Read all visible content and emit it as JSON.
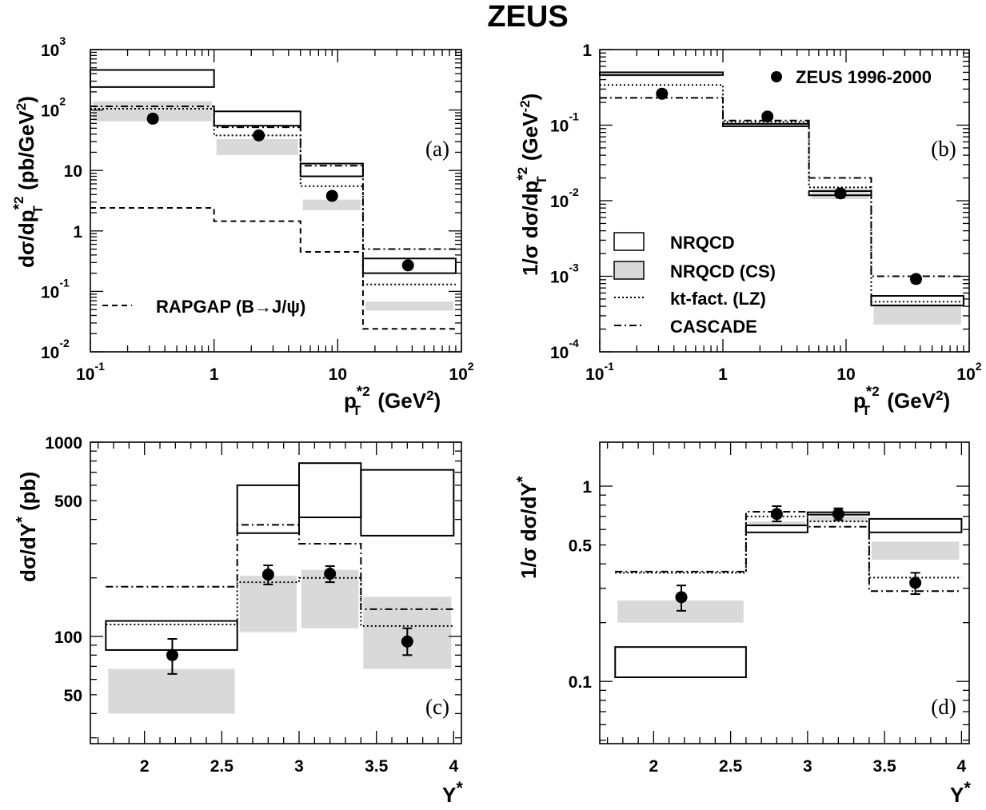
{
  "title": "ZEUS",
  "legend": {
    "data": "ZEUS 1996-2000",
    "nrqcd": "NRQCD",
    "nrqcd_cs": "NRQCD (CS)",
    "ktfact": "kt-fact. (LZ)",
    "cascade": "CASCADE",
    "rapgap": "RAPGAP (B→J/ψ)"
  },
  "chart_data": [
    {
      "type": "line",
      "panel_label": "(a)",
      "x_scale": "log",
      "y_scale": "log",
      "xlim": [
        0.1,
        100
      ],
      "ylim": [
        0.01,
        1000
      ],
      "xlabel": "p*²T (GeV²)",
      "ylabel": "dσ/dp*²T (pb/GeV²)",
      "x_ticks": [
        "10⁻¹",
        "1",
        "10",
        "10²"
      ],
      "y_ticks": [
        "10⁻²",
        "10⁻¹",
        "1",
        "10",
        "10²",
        "10³"
      ],
      "bins": [
        [
          0.1,
          1
        ],
        [
          1,
          5
        ],
        [
          5,
          16
        ],
        [
          16,
          90
        ]
      ],
      "data": [
        {
          "x": 0.32,
          "y": 72,
          "err": [
            63,
            82
          ]
        },
        {
          "x": 2.3,
          "y": 38,
          "err": [
            35,
            41
          ]
        },
        {
          "x": 9,
          "y": 3.8,
          "err": [
            3.5,
            4.2
          ]
        },
        {
          "x": 37,
          "y": 0.27,
          "err": [
            0.24,
            0.3
          ]
        }
      ],
      "nrqcd": [
        [
          240,
          460
        ],
        [
          55,
          95
        ],
        [
          8,
          13
        ],
        [
          0.2,
          0.35
        ]
      ],
      "nrqcd_cs": [
        [
          65,
          140
        ],
        [
          18,
          33
        ],
        [
          2.2,
          3.3
        ],
        [
          0.048,
          0.068
        ]
      ],
      "ktfact": [
        105,
        38,
        5.5,
        0.13
      ],
      "cascade": [
        115,
        52,
        12,
        0.5
      ],
      "rapgap": [
        2.4,
        1.45,
        0.45,
        0.024
      ]
    },
    {
      "type": "line",
      "panel_label": "(b)",
      "x_scale": "log",
      "y_scale": "log",
      "xlim": [
        0.1,
        100
      ],
      "ylim": [
        0.0001,
        1
      ],
      "xlabel": "p*²T (GeV²)",
      "ylabel": "1/σ dσ/dp*²T (GeV⁻²)",
      "x_ticks": [
        "10⁻¹",
        "1",
        "10",
        "10²"
      ],
      "y_ticks": [
        "10⁻⁴",
        "10⁻³",
        "10⁻²",
        "10⁻¹",
        "1"
      ],
      "bins": [
        [
          0.1,
          1
        ],
        [
          1,
          5
        ],
        [
          5,
          16
        ],
        [
          16,
          90
        ]
      ],
      "data": [
        {
          "x": 0.32,
          "y": 0.26,
          "err": [
            0.24,
            0.29
          ]
        },
        {
          "x": 2.3,
          "y": 0.13,
          "err": [
            0.12,
            0.14
          ]
        },
        {
          "x": 9,
          "y": 0.0125,
          "err": [
            0.011,
            0.014
          ]
        },
        {
          "x": 37,
          "y": 0.00092,
          "err": [
            0.00082,
            0.001
          ]
        }
      ],
      "nrqcd": [
        [
          0.46,
          0.5
        ],
        [
          0.1,
          0.104
        ],
        [
          0.0118,
          0.0134
        ],
        [
          0.00041,
          0.00055
        ]
      ],
      "nrqcd_cs": [
        [
          0.44,
          0.48
        ],
        [
          0.098,
          0.106
        ],
        [
          0.0105,
          0.0145
        ],
        [
          0.00023,
          0.00043
        ]
      ],
      "ktfact": [
        0.34,
        0.11,
        0.015,
        0.00046
      ],
      "cascade": [
        0.23,
        0.115,
        0.02,
        0.001
      ]
    },
    {
      "type": "line",
      "panel_label": "(c)",
      "x_scale": "linear",
      "y_scale": "log",
      "xlim": [
        1.65,
        4.05
      ],
      "ylim": [
        28,
        1000
      ],
      "xlabel": "Y*",
      "ylabel": "dσ/dY* (pb)",
      "x_ticks": [
        "2",
        "2.5",
        "3",
        "3.5",
        "4"
      ],
      "y_ticks": [
        "50",
        "100",
        "500",
        "1000"
      ],
      "bins": [
        [
          1.75,
          2.6
        ],
        [
          2.6,
          3.0
        ],
        [
          3.0,
          3.4
        ],
        [
          3.4,
          4.0
        ]
      ],
      "data": [
        {
          "x": 2.18,
          "y": 80,
          "err": [
            64,
            97
          ]
        },
        {
          "x": 2.8,
          "y": 208,
          "err": [
            185,
            232
          ]
        },
        {
          "x": 3.2,
          "y": 210,
          "err": [
            190,
            230
          ]
        },
        {
          "x": 3.7,
          "y": 94,
          "err": [
            80,
            110
          ]
        }
      ],
      "nrqcd": [
        [
          85,
          120
        ],
        [
          340,
          600
        ],
        [
          410,
          780
        ],
        [
          330,
          720
        ]
      ],
      "nrqcd_cs": [
        [
          40,
          68
        ],
        [
          105,
          205
        ],
        [
          110,
          220
        ],
        [
          68,
          160
        ]
      ],
      "ktfact": [
        115,
        190,
        200,
        113
      ],
      "cascade": [
        180,
        375,
        300,
        138
      ]
    },
    {
      "type": "line",
      "panel_label": "(d)",
      "x_scale": "linear",
      "y_scale": "log",
      "xlim": [
        1.65,
        4.05
      ],
      "ylim": [
        0.048,
        1.68
      ],
      "xlabel": "Y*",
      "ylabel": "1/σ dσ/dY*",
      "x_ticks": [
        "2",
        "2.5",
        "3",
        "3.5",
        "4"
      ],
      "y_ticks": [
        "0.1",
        "0.5",
        "1"
      ],
      "bins": [
        [
          1.75,
          2.6
        ],
        [
          2.6,
          3.0
        ],
        [
          3.0,
          3.4
        ],
        [
          3.4,
          4.0
        ]
      ],
      "data": [
        {
          "x": 2.18,
          "y": 0.27,
          "err": [
            0.23,
            0.31
          ]
        },
        {
          "x": 2.8,
          "y": 0.72,
          "err": [
            0.66,
            0.79
          ]
        },
        {
          "x": 3.2,
          "y": 0.72,
          "err": [
            0.67,
            0.77
          ]
        },
        {
          "x": 3.7,
          "y": 0.32,
          "err": [
            0.28,
            0.36
          ]
        }
      ],
      "nrqcd": [
        [
          0.105,
          0.15
        ],
        [
          0.58,
          0.63
        ],
        [
          0.72,
          0.735
        ],
        [
          0.58,
          0.68
        ]
      ],
      "nrqcd_cs": [
        [
          0.2,
          0.26
        ],
        [
          0.62,
          0.66
        ],
        [
          0.66,
          0.7
        ],
        [
          0.42,
          0.52
        ]
      ],
      "ktfact": [
        0.36,
        0.7,
        0.66,
        0.34
      ],
      "cascade": [
        0.365,
        0.74,
        0.62,
        0.29
      ]
    }
  ]
}
